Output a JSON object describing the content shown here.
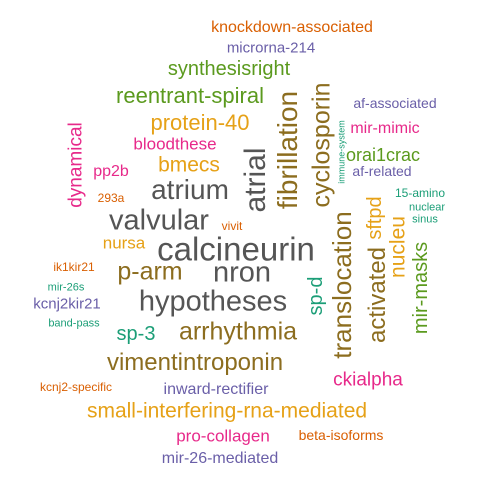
{
  "colors": {
    "background": "#ffffff",
    "orange": "#d95f02",
    "purple": "#6a5fa8",
    "green": "#5b9a1e",
    "magenta": "#e7298a",
    "teal": "#1b9e77",
    "gold": "#e6a117",
    "brown": "#8c6d1f",
    "gray": "#555555"
  },
  "words": [
    {
      "text": "knockdown-associated",
      "color": "orange"
    },
    {
      "text": "microrna-214",
      "color": "purple"
    },
    {
      "text": "synthesisright",
      "color": "green"
    },
    {
      "text": "reentrant-spiral",
      "color": "green"
    },
    {
      "text": "protein-40",
      "color": "gold"
    },
    {
      "text": "bloodthese",
      "color": "magenta"
    },
    {
      "text": "pp2b",
      "color": "magenta"
    },
    {
      "text": "bmecs",
      "color": "gold"
    },
    {
      "text": "atrium",
      "color": "gray"
    },
    {
      "text": "valvular",
      "color": "gray"
    },
    {
      "text": "dynamical",
      "color": "magenta"
    },
    {
      "text": "293a",
      "color": "orange"
    },
    {
      "text": "vivit",
      "color": "orange"
    },
    {
      "text": "nursa",
      "color": "gold"
    },
    {
      "text": "calcineurin",
      "color": "gray"
    },
    {
      "text": "ik1kir21",
      "color": "orange"
    },
    {
      "text": "p-arm",
      "color": "brown"
    },
    {
      "text": "nron",
      "color": "gray"
    },
    {
      "text": "mir-26s",
      "color": "teal"
    },
    {
      "text": "kcnj2kir21",
      "color": "purple"
    },
    {
      "text": "hypotheses",
      "color": "gray"
    },
    {
      "text": "band-pass",
      "color": "teal"
    },
    {
      "text": "sp-3",
      "color": "teal"
    },
    {
      "text": "arrhythmia",
      "color": "brown"
    },
    {
      "text": "vimentintroponin",
      "color": "brown"
    },
    {
      "text": "kcnj2-specific",
      "color": "orange"
    },
    {
      "text": "inward-rectifier",
      "color": "purple"
    },
    {
      "text": "small-interfering-rna-mediated",
      "color": "gold"
    },
    {
      "text": "pro-collagen",
      "color": "magenta"
    },
    {
      "text": "beta-isoforms",
      "color": "orange"
    },
    {
      "text": "mir-26-mediated",
      "color": "purple"
    },
    {
      "text": "atrial",
      "color": "gray"
    },
    {
      "text": "fibrillation",
      "color": "brown"
    },
    {
      "text": "cyclosporin",
      "color": "brown"
    },
    {
      "text": "immune-system",
      "color": "teal"
    },
    {
      "text": "sp-d",
      "color": "teal"
    },
    {
      "text": "translocation",
      "color": "brown"
    },
    {
      "text": "activated",
      "color": "brown"
    },
    {
      "text": "sftpd",
      "color": "gold"
    },
    {
      "text": "nucleu",
      "color": "gold"
    },
    {
      "text": "mir-masks",
      "color": "green"
    },
    {
      "text": "af-associated",
      "color": "purple"
    },
    {
      "text": "mir-mimic",
      "color": "magenta"
    },
    {
      "text": "orai1crac",
      "color": "green"
    },
    {
      "text": "af-related",
      "color": "purple"
    },
    {
      "text": "15-amino",
      "color": "teal"
    },
    {
      "text": "nuclear",
      "color": "teal"
    },
    {
      "text": "sinus",
      "color": "teal"
    },
    {
      "text": "ckialpha",
      "color": "magenta"
    }
  ]
}
